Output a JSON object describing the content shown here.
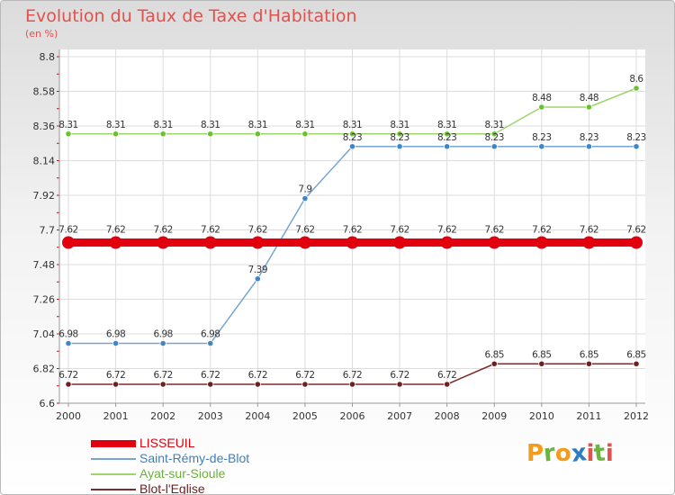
{
  "header": {
    "title": "Evolution du Taux de Taxe d'Habitation",
    "subtitle": "(en %)"
  },
  "logo": {
    "letters": [
      "P",
      "r",
      "o",
      "x",
      "i",
      "t",
      "i"
    ],
    "colors": [
      "#f29b1d",
      "#6cb33f",
      "#f29b1d",
      "#2b7cc0",
      "#e0524d",
      "#6cb33f",
      "#e0524d"
    ]
  },
  "chart_data": {
    "type": "line",
    "x": [
      "2000",
      "2001",
      "2002",
      "2003",
      "2004",
      "2005",
      "2006",
      "2007",
      "2008",
      "2009",
      "2010",
      "2011",
      "2012"
    ],
    "y_ticks": [
      "6.6",
      "6.82",
      "7.04",
      "7.26",
      "7.48",
      "7.7",
      "7.92",
      "8.14",
      "8.36",
      "8.58",
      "8.8"
    ],
    "ylim": [
      6.6,
      8.8
    ],
    "grid": true,
    "legend_position": "bottom-left",
    "series": [
      {
        "name": "LISSEUIL",
        "color": "#e2000f",
        "values": [
          7.62,
          7.62,
          7.62,
          7.62,
          7.62,
          7.62,
          7.62,
          7.62,
          7.62,
          7.62,
          7.62,
          7.62,
          7.62
        ],
        "labels": [
          "7.62",
          "7.62",
          "7.62",
          "7.62",
          "7.62",
          "7.62",
          "7.62",
          "7.62",
          "7.62",
          "7.62",
          "7.62",
          "7.62",
          "7.62"
        ]
      },
      {
        "name": "Saint-Rémy-de-Blot",
        "color": "#78a5cf",
        "marker": "#3f86c8",
        "values": [
          6.98,
          6.98,
          6.98,
          6.98,
          7.39,
          7.9,
          8.23,
          8.23,
          8.23,
          8.23,
          8.23,
          8.23,
          8.23
        ],
        "labels": [
          "6.98",
          "6.98",
          "6.98",
          "6.98",
          "7.39",
          "7.9",
          "8.23",
          "8.23",
          "8.23",
          "8.23",
          "8.23",
          "8.23",
          "8.23"
        ]
      },
      {
        "name": "Ayat-sur-Sioule",
        "color": "#9ed56b",
        "marker": "#6ac22f",
        "values": [
          8.31,
          8.31,
          8.31,
          8.31,
          8.31,
          8.31,
          8.31,
          8.31,
          8.31,
          8.31,
          8.48,
          8.48,
          8.6
        ],
        "labels": [
          "8.31",
          "8.31",
          "8.31",
          "8.31",
          "8.31",
          "8.31",
          "8.31",
          "8.31",
          "8.31",
          "8.31",
          "8.48",
          "8.48",
          "8.6"
        ]
      },
      {
        "name": "Blot-l'Eglise",
        "color": "#7b2c2c",
        "marker": "#6e1f1f",
        "values": [
          6.72,
          6.72,
          6.72,
          6.72,
          6.72,
          6.72,
          6.72,
          6.72,
          6.72,
          6.85,
          6.85,
          6.85,
          6.85
        ],
        "labels": [
          "6.72",
          "6.72",
          "6.72",
          "6.72",
          "6.72",
          "6.72",
          "6.72",
          "6.72",
          "6.72",
          "6.85",
          "6.85",
          "6.85",
          "6.85"
        ]
      }
    ]
  }
}
